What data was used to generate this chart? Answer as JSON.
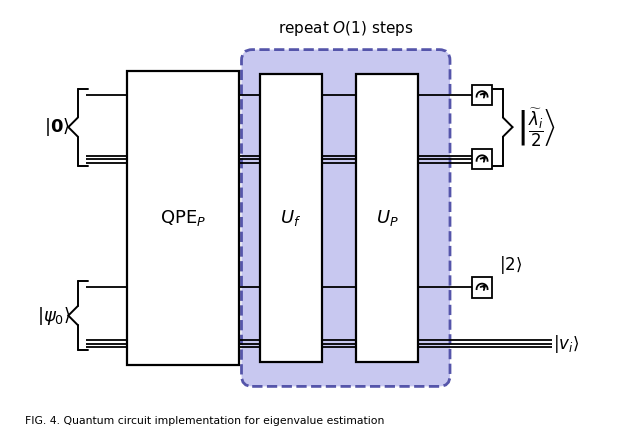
{
  "bg_color": "#ffffff",
  "box_border": "#000000",
  "dashed_box_fill": "#c8c8f0",
  "dashed_box_border": "#5555aa",
  "gate_fill": "#ffffff",
  "wire_color": "#000000",
  "text_color": "#000000",
  "caption": "FIG. 4. Quantum circuit implementation for eigenvalue estimation"
}
